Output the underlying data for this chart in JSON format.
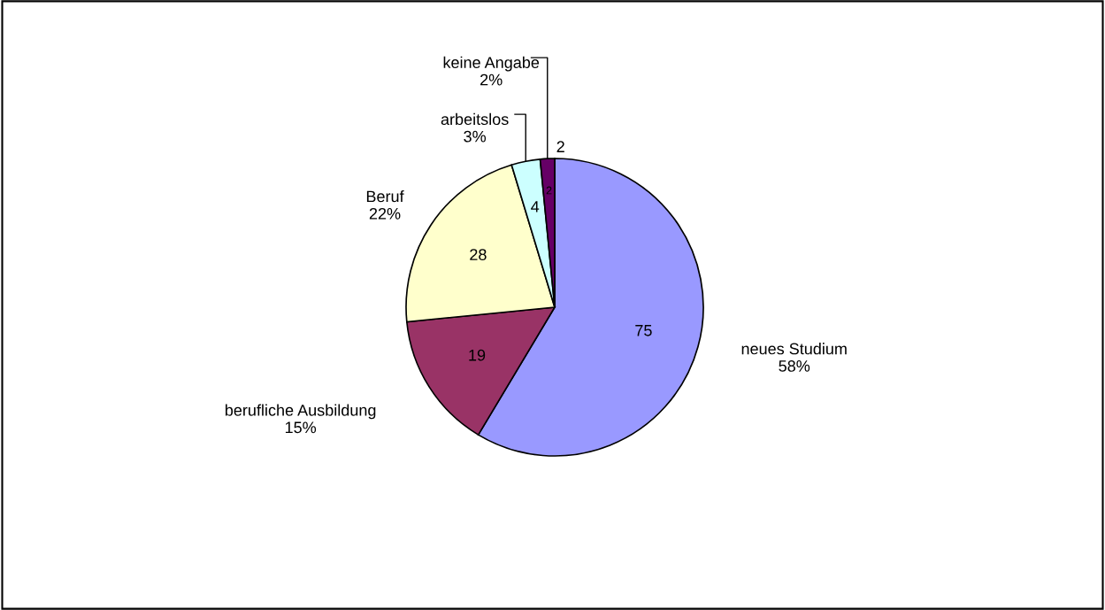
{
  "chart_data": {
    "type": "pie",
    "categories": [
      "neues Studium",
      "berufliche Ausbildung",
      "Beruf",
      "arbeitslos",
      "keine Angabe"
    ],
    "values": [
      75,
      19,
      28,
      4,
      2
    ],
    "colors": [
      "#9999ff",
      "#993366",
      "#ffffcc",
      "#ccffff",
      "#660066"
    ],
    "data_labels": true,
    "annotations": [
      "58%",
      "15%",
      "22%",
      "3%",
      "2%",
      "2"
    ]
  }
}
